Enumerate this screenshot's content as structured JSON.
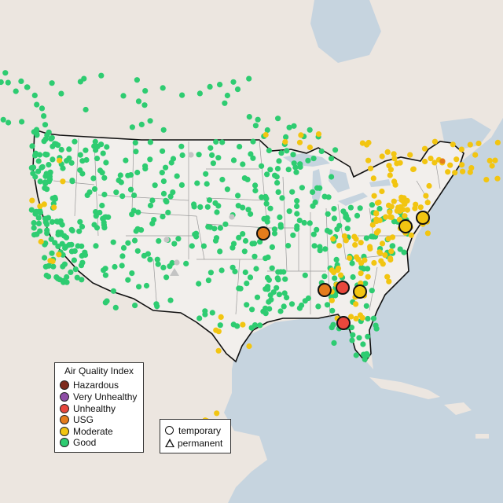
{
  "legend": {
    "title": "Air Quality Index",
    "categories": [
      {
        "label": "Hazardous",
        "color": "#7e2b1e"
      },
      {
        "label": "Very Unhealthy",
        "color": "#8e4ea6"
      },
      {
        "label": "Unhealthy",
        "color": "#e8473c"
      },
      {
        "label": "USG",
        "color": "#e47c1c"
      },
      {
        "label": "Moderate",
        "color": "#f2c511"
      },
      {
        "label": "Good",
        "color": "#2ecc71"
      }
    ]
  },
  "site_legend": {
    "temporary": "temporary",
    "permanent": "permanent"
  },
  "colors": {
    "land": "#ece6e0",
    "water": "#c6d4df",
    "usa_fill": "#f2efec",
    "border": "#111111",
    "state_line": "#9a9a9a",
    "no_data": "#c4c4c4"
  }
}
